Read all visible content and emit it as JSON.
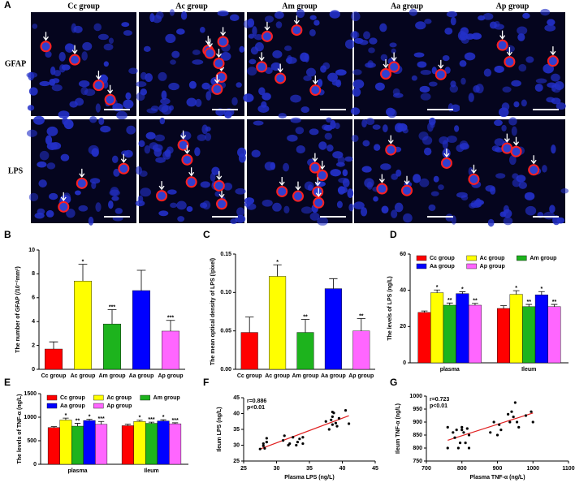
{
  "panel_a": {
    "panel": "A",
    "columns": [
      "Cc group",
      "Ac group",
      "Am group",
      "Aa group",
      "Ap group"
    ],
    "rows": [
      "GFAP",
      "LPS"
    ]
  },
  "chart_data": [
    {
      "type": "bar",
      "panel": "B",
      "ylabel": "The number of GFAP (/10⁻²mm²)",
      "categories": [
        "Cc group",
        "Ac group",
        "Am group",
        "Aa group",
        "Ap group"
      ],
      "values": [
        1.7,
        7.4,
        3.8,
        6.6,
        3.2
      ],
      "errors": [
        0.6,
        1.4,
        1.2,
        1.7,
        0.9
      ],
      "significance": [
        null,
        "*",
        "***",
        null,
        "***"
      ],
      "colors": [
        "#ff0000",
        "#ffff00",
        "#1db31d",
        "#0000ff",
        "#ff66ff"
      ],
      "ylim": [
        0,
        10
      ],
      "yticks": [
        0,
        2,
        4,
        6,
        8,
        10
      ]
    },
    {
      "type": "bar",
      "panel": "C",
      "ylabel": "The mean optical density of LPS (/pixel)",
      "categories": [
        "Cc group",
        "Ac group",
        "Am group",
        "Aa group",
        "Ap group"
      ],
      "values": [
        0.048,
        0.121,
        0.048,
        0.105,
        0.05
      ],
      "errors": [
        0.02,
        0.015,
        0.017,
        0.013,
        0.016
      ],
      "significance": [
        null,
        "*",
        "**",
        null,
        "**"
      ],
      "colors": [
        "#ff0000",
        "#ffff00",
        "#1db31d",
        "#0000ff",
        "#ff66ff"
      ],
      "ylim": [
        0,
        0.15
      ],
      "yticks": [
        {
          "value": 0,
          "label": "0.00"
        },
        {
          "value": 0.05,
          "label": "0.05"
        },
        {
          "value": 0.1,
          "label": "0.10"
        },
        {
          "value": 0.15,
          "label": "0.15"
        }
      ]
    },
    {
      "type": "bar",
      "panel": "D",
      "ylabel": "The levels of LPS (ng/L)",
      "categories": [
        "plasma",
        "Ileum"
      ],
      "series": [
        {
          "name": "Cc group",
          "color": "#ff0000",
          "values": [
            27.8,
            30
          ],
          "errors": [
            0.8,
            1.5
          ],
          "significance": [
            null,
            null
          ]
        },
        {
          "name": "Ac group",
          "color": "#ffff00",
          "values": [
            38.7,
            37.8
          ],
          "errors": [
            1.5,
            2
          ],
          "significance": [
            "*",
            "*"
          ]
        },
        {
          "name": "Am group",
          "color": "#1db31d",
          "values": [
            31.8,
            31
          ],
          "errors": [
            1.2,
            1.2
          ],
          "significance": [
            "**",
            "**"
          ]
        },
        {
          "name": "Aa group",
          "color": "#0000ff",
          "values": [
            38.2,
            37.5
          ],
          "errors": [
            1,
            1.8
          ],
          "significance": [
            "*",
            "*"
          ]
        },
        {
          "name": "Ap group",
          "color": "#ff66ff",
          "values": [
            31.8,
            31
          ],
          "errors": [
            1,
            1.2
          ],
          "significance": [
            "**",
            "**"
          ]
        }
      ],
      "ylim": [
        0,
        60
      ],
      "yticks": [
        0,
        20,
        40,
        60
      ]
    },
    {
      "type": "bar",
      "panel": "E",
      "ylabel": "The levels of TNF-α (ng/L)",
      "categories": [
        "plasma",
        "Ileum"
      ],
      "series": [
        {
          "name": "Cc group",
          "color": "#ff0000",
          "values": [
            780,
            820
          ],
          "errors": [
            20,
            30
          ],
          "significance": [
            null,
            null
          ]
        },
        {
          "name": "Ac group",
          "color": "#ffff00",
          "values": [
            940,
            910
          ],
          "errors": [
            40,
            25
          ],
          "significance": [
            "*",
            "*"
          ]
        },
        {
          "name": "Am group",
          "color": "#1db31d",
          "values": [
            810,
            870
          ],
          "errors": [
            60,
            25
          ],
          "significance": [
            "**",
            "***"
          ]
        },
        {
          "name": "Aa group",
          "color": "#0000ff",
          "values": [
            930,
            920
          ],
          "errors": [
            25,
            25
          ],
          "significance": [
            "*",
            "*"
          ]
        },
        {
          "name": "Ap group",
          "color": "#ff66ff",
          "values": [
            850,
            860
          ],
          "errors": [
            60,
            20
          ],
          "significance": [
            "***",
            "***"
          ]
        }
      ],
      "ylim": [
        0,
        1500
      ],
      "yticks": [
        0,
        500,
        1000,
        1500
      ]
    },
    {
      "type": "scatter",
      "panel": "F",
      "xlabel": "Plasma LPS (ng/L)",
      "ylabel": "Ileum LPS (ng/L)",
      "annotations": [
        "r=0.886",
        "p<0.01"
      ],
      "color": "#000000",
      "trend_color": "#e02020",
      "x": [
        27.5,
        28,
        28.2,
        28.5,
        28.5,
        28,
        31,
        31.2,
        31.8,
        32,
        32.5,
        33,
        33.2,
        33.5,
        34,
        34,
        37.5,
        38,
        38.3,
        38.5,
        38.5,
        38.7,
        39,
        39.2,
        40.5,
        41,
        39.5,
        38.5
      ],
      "y": [
        28.8,
        30.5,
        29,
        31,
        32.2,
        29.8,
        31.5,
        33,
        30,
        30.5,
        32.5,
        30,
        31,
        32,
        32.5,
        30.5,
        37.5,
        35,
        38,
        36.5,
        39,
        40.2,
        37,
        36,
        41,
        36.8,
        38.5,
        40.5
      ],
      "trend_line": {
        "x": [
          27.5,
          41
        ],
        "y": [
          28.8,
          39.3
        ]
      },
      "xlim": [
        25,
        45
      ],
      "xticks": [
        25,
        30,
        35,
        40,
        45
      ],
      "ylim": [
        25,
        45
      ],
      "yticks": [
        25,
        30,
        35,
        40,
        45
      ]
    },
    {
      "type": "scatter",
      "panel": "G",
      "xlabel": "Plasma TNF-α (ng/L)",
      "ylabel": "Ileum TNF-α (ng/L)",
      "annotations": [
        "r=0.723",
        "p<0.01"
      ],
      "color": "#000000",
      "trend_color": "#e02020",
      "x": [
        760,
        760,
        775,
        780,
        785,
        790,
        795,
        800,
        800,
        805,
        810,
        815,
        820,
        820,
        880,
        890,
        900,
        905,
        910,
        930,
        935,
        940,
        945,
        950,
        955,
        960,
        980,
        995,
        1000
      ],
      "y": [
        880,
        800,
        860,
        840,
        870,
        800,
        820,
        880,
        870,
        860,
        820,
        875,
        850,
        800,
        860,
        900,
        850,
        890,
        870,
        930,
        900,
        940,
        920,
        975,
        900,
        880,
        925,
        940,
        900
      ],
      "trend_line": {
        "x": [
          760,
          1000
        ],
        "y": [
          830,
          935
        ]
      },
      "xlim": [
        700,
        1100
      ],
      "xticks": [
        700,
        800,
        900,
        1000,
        1100
      ],
      "ylim": [
        750,
        1000
      ],
      "yticks": [
        750,
        800,
        850,
        900,
        950,
        1000
      ]
    }
  ]
}
